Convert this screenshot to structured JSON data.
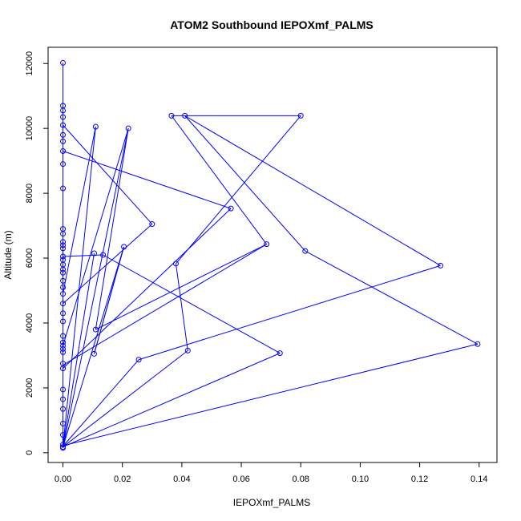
{
  "chart_data": {
    "type": "line",
    "title": "ATOM2 Southbound IEPOXmf_PALMS",
    "xlabel": "IEPOXmf_PALMS",
    "ylabel": "Altitude (m)",
    "xlim": [
      -0.005,
      0.146
    ],
    "ylim": [
      -300,
      12500
    ],
    "x_ticks": [
      0.0,
      0.02,
      0.04,
      0.06,
      0.08,
      0.1,
      0.12,
      0.14
    ],
    "x_tick_labels": [
      "0.00",
      "0.02",
      "0.04",
      "0.06",
      "0.08",
      "0.10",
      "0.12",
      "0.14"
    ],
    "y_ticks": [
      0,
      2000,
      4000,
      6000,
      8000,
      10000,
      12000
    ],
    "y_tick_labels": [
      "0",
      "2000",
      "4000",
      "6000",
      "8000",
      "10000",
      "12000"
    ],
    "grid": false,
    "marker": "open-circle",
    "series": [
      {
        "color": "#0000ff",
        "points": [
          [
            0.0,
            12020
          ],
          [
            0.0,
            10700
          ],
          [
            0.0,
            10550
          ],
          [
            0.0,
            10350
          ],
          [
            0.0,
            10100
          ],
          [
            0.0,
            9800
          ],
          [
            0.0,
            9600
          ],
          [
            0.0,
            9300
          ],
          [
            0.0,
            8900
          ],
          [
            0.0,
            8150
          ],
          [
            0.0,
            6900
          ],
          [
            0.0,
            6750
          ],
          [
            0.0,
            6500
          ],
          [
            0.0,
            6400
          ],
          [
            0.0,
            6300
          ],
          [
            0.0,
            6050
          ],
          [
            0.0,
            5950
          ],
          [
            0.0,
            5800
          ],
          [
            0.0,
            5650
          ],
          [
            0.0,
            5550
          ],
          [
            0.0,
            5300
          ],
          [
            0.0,
            5100
          ],
          [
            0.0,
            4900
          ],
          [
            0.0,
            4600
          ],
          [
            0.0,
            4300
          ],
          [
            0.0,
            4050
          ],
          [
            0.0,
            3600
          ],
          [
            0.0,
            3400
          ],
          [
            0.0,
            3300
          ],
          [
            0.0,
            3200
          ],
          [
            0.0,
            3100
          ],
          [
            0.0,
            2750
          ],
          [
            0.0,
            2600
          ],
          [
            0.0,
            1950
          ],
          [
            0.0,
            1650
          ],
          [
            0.0,
            1350
          ],
          [
            0.0,
            900
          ],
          [
            0.0,
            550
          ],
          [
            0.0,
            250
          ],
          [
            0.0,
            180
          ],
          [
            0.0,
            150
          ],
          [
            0.011,
            10050
          ],
          [
            0.0105,
            3050
          ],
          [
            0.0105,
            6150
          ],
          [
            0.011,
            3800
          ],
          [
            0.0135,
            6100
          ],
          [
            0.0205,
            6350
          ],
          [
            0.022,
            10000
          ],
          [
            0.0255,
            2870
          ],
          [
            0.03,
            7050
          ],
          [
            0.0365,
            10390
          ],
          [
            0.038,
            5830
          ],
          [
            0.041,
            10390
          ],
          [
            0.042,
            3150
          ],
          [
            0.0565,
            7530
          ],
          [
            0.0685,
            6430
          ],
          [
            0.073,
            3070
          ],
          [
            0.08,
            10390
          ],
          [
            0.0815,
            6220
          ],
          [
            0.127,
            5770
          ],
          [
            0.1395,
            3350
          ]
        ],
        "segments": [
          [
            [
              0.0,
              12020
            ],
            [
              0.0,
              150
            ]
          ],
          [
            [
              0.0,
              10100
            ],
            [
              0.03,
              7050
            ]
          ],
          [
            [
              0.03,
              7050
            ],
            [
              0.0,
              4600
            ]
          ],
          [
            [
              0.0,
              9300
            ],
            [
              0.0565,
              7530
            ]
          ],
          [
            [
              0.0565,
              7530
            ],
            [
              0.0,
              2600
            ]
          ],
          [
            [
              0.0,
              6050
            ],
            [
              0.0135,
              6100
            ]
          ],
          [
            [
              0.0135,
              6100
            ],
            [
              0.073,
              3070
            ]
          ],
          [
            [
              0.073,
              3070
            ],
            [
              0.0,
              180
            ]
          ],
          [
            [
              0.0,
              4900
            ],
            [
              0.011,
              10050
            ]
          ],
          [
            [
              0.011,
              10050
            ],
            [
              0.0,
              200
            ]
          ],
          [
            [
              0.0,
              3300
            ],
            [
              0.022,
              10000
            ]
          ],
          [
            [
              0.022,
              10000
            ],
            [
              0.0,
              150
            ]
          ],
          [
            [
              0.0,
              2700
            ],
            [
              0.0685,
              6430
            ]
          ],
          [
            [
              0.0685,
              6430
            ],
            [
              0.011,
              3800
            ]
          ],
          [
            [
              0.011,
              3800
            ],
            [
              0.022,
              10000
            ]
          ],
          [
            [
              0.0105,
              6150
            ],
            [
              0.0,
              200
            ]
          ],
          [
            [
              0.0205,
              6350
            ],
            [
              0.0105,
              3050
            ]
          ],
          [
            [
              0.0105,
              3050
            ],
            [
              0.0205,
              6350
            ]
          ],
          [
            [
              0.0205,
              6350
            ],
            [
              0.0,
              180
            ]
          ],
          [
            [
              0.0,
              200
            ],
            [
              0.0255,
              2870
            ]
          ],
          [
            [
              0.0255,
              2870
            ],
            [
              0.127,
              5770
            ]
          ],
          [
            [
              0.127,
              5770
            ],
            [
              0.041,
              10390
            ]
          ],
          [
            [
              0.041,
              10390
            ],
            [
              0.0365,
              10390
            ]
          ],
          [
            [
              0.0365,
              10390
            ],
            [
              0.0685,
              6430
            ]
          ],
          [
            [
              0.041,
              10390
            ],
            [
              0.08,
              10390
            ]
          ],
          [
            [
              0.08,
              10390
            ],
            [
              0.038,
              5830
            ]
          ],
          [
            [
              0.038,
              5830
            ],
            [
              0.042,
              3150
            ]
          ],
          [
            [
              0.042,
              3150
            ],
            [
              0.0,
              180
            ]
          ],
          [
            [
              0.041,
              10390
            ],
            [
              0.0815,
              6220
            ]
          ],
          [
            [
              0.0815,
              6220
            ],
            [
              0.1395,
              3350
            ]
          ],
          [
            [
              0.1395,
              3350
            ],
            [
              0.0,
              220
            ]
          ]
        ]
      }
    ]
  }
}
